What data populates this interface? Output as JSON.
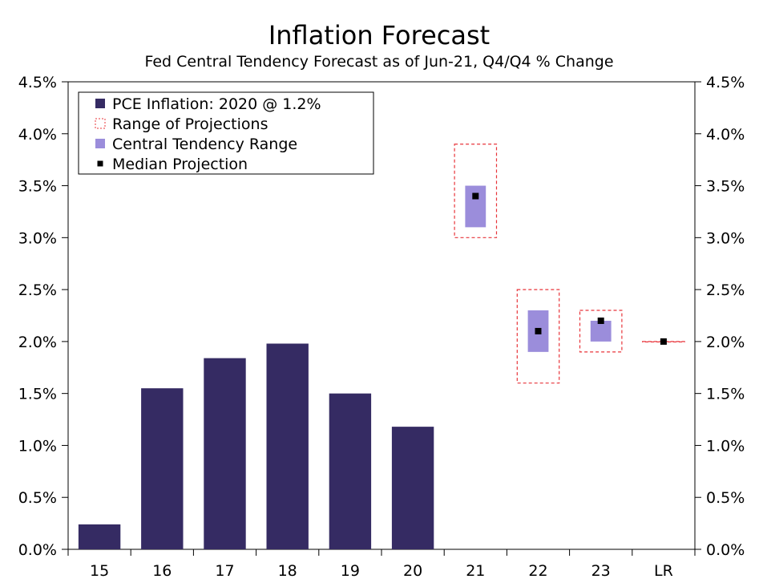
{
  "chart_data": {
    "type": "bar",
    "title": "Inflation Forecast",
    "subtitle": "Fed Central Tendency Forecast as of Jun-21, Q4/Q4 % Change",
    "categories": [
      "15",
      "16",
      "17",
      "18",
      "19",
      "20",
      "21",
      "22",
      "23",
      "LR"
    ],
    "ylim": [
      0,
      4.5
    ],
    "y_ticks": [
      0,
      0.5,
      1.0,
      1.5,
      2.0,
      2.5,
      3.0,
      3.5,
      4.0,
      4.5
    ],
    "y_tick_labels": [
      "0.0%",
      "0.5%",
      "1.0%",
      "1.5%",
      "2.0%",
      "2.5%",
      "3.0%",
      "3.5%",
      "4.0%",
      "4.5%"
    ],
    "series": [
      {
        "name": "PCE Inflation: 2020 @ 1.2%",
        "kind": "bar",
        "color": "#352b63",
        "values": [
          0.24,
          1.55,
          1.84,
          1.98,
          1.5,
          1.18,
          null,
          null,
          null,
          null
        ]
      },
      {
        "name": "Range of Projections",
        "kind": "range-box",
        "color": "#e8343a",
        "values": [
          null,
          null,
          null,
          null,
          null,
          null,
          [
            3.0,
            3.9
          ],
          [
            1.6,
            2.5
          ],
          [
            1.9,
            2.3
          ],
          [
            2.0,
            2.0
          ]
        ]
      },
      {
        "name": "Central Tendency Range",
        "kind": "range-bar",
        "color": "#9b8ddb",
        "values": [
          null,
          null,
          null,
          null,
          null,
          null,
          [
            3.1,
            3.5
          ],
          [
            1.9,
            2.3
          ],
          [
            2.0,
            2.2
          ],
          [
            2.0,
            2.0
          ]
        ]
      },
      {
        "name": "Median Projection",
        "kind": "marker",
        "color": "#000000",
        "values": [
          null,
          null,
          null,
          null,
          null,
          null,
          3.4,
          2.1,
          2.2,
          2.0
        ]
      }
    ],
    "legend": {
      "position": "top-left",
      "items": [
        {
          "label": "PCE Inflation: 2020 @ 1.2%",
          "symbol": "solid-square",
          "color": "#352b63"
        },
        {
          "label": "Range of Projections",
          "symbol": "dashed-square",
          "color": "#e8343a"
        },
        {
          "label": "Central Tendency Range",
          "symbol": "solid-square",
          "color": "#9b8ddb"
        },
        {
          "label": "Median Projection",
          "symbol": "small-square",
          "color": "#000000"
        }
      ]
    },
    "grid": false
  }
}
